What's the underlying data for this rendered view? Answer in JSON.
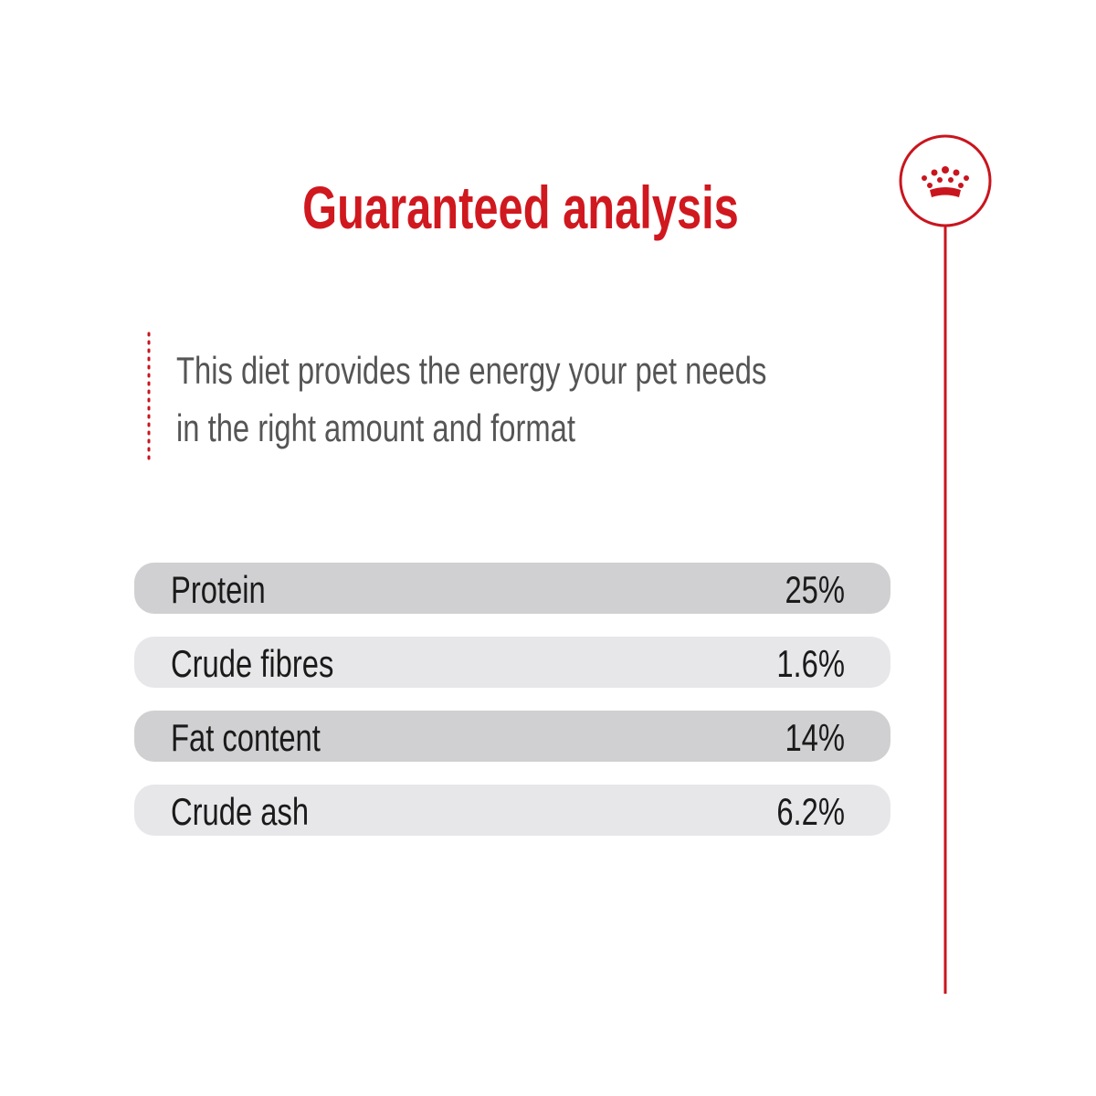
{
  "title": "Guaranteed analysis",
  "intro": [
    "This diet provides the energy your pet needs",
    "in the right amount and format"
  ],
  "table": {
    "rows": [
      [
        "Protein",
        "25%"
      ],
      [
        "Crude fibres",
        "1.6%"
      ],
      [
        "Fat content",
        "14%"
      ],
      [
        "Crude ash",
        "6.2%"
      ]
    ]
  }
}
